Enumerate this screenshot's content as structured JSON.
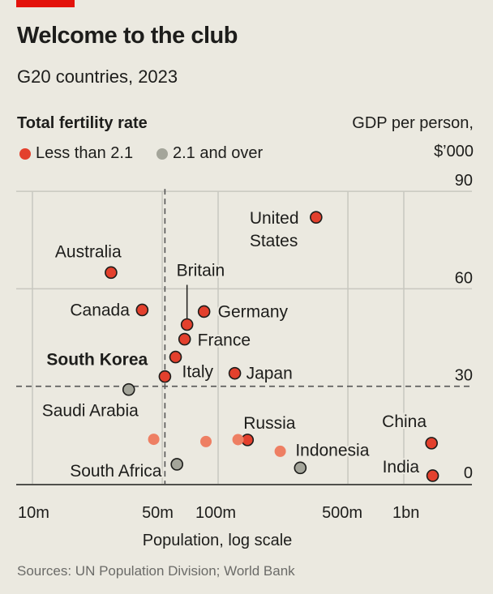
{
  "header": {
    "title": "Welcome to the club",
    "subtitle": "G20 countries, 2023"
  },
  "legend": {
    "title": "Total fertility rate",
    "items": [
      {
        "label": "Less than 2.1",
        "color": "#e3402d"
      },
      {
        "label": "2.1 and over",
        "color": "#a4a59a"
      }
    ]
  },
  "footer": {
    "sources": "Sources: UN Population Division; World Bank"
  },
  "chart_data": {
    "type": "scatter",
    "title": "Welcome to the club",
    "subtitle": "G20 countries, 2023",
    "xlabel": "Population, log scale",
    "ylabel": "GDP per person, $'000",
    "ylabel_lines": [
      "GDP per person,",
      "$’000"
    ],
    "xscale": "log",
    "xlim_millions": [
      10,
      2280
    ],
    "ylim": [
      0,
      90
    ],
    "xticks": [
      {
        "value": 10,
        "label": "10m"
      },
      {
        "value": 50,
        "label": "50m"
      },
      {
        "value": 100,
        "label": "100m"
      },
      {
        "value": 500,
        "label": "500m"
      },
      {
        "value": 1000,
        "label": "1bn"
      }
    ],
    "yticks": [
      {
        "value": 0,
        "label": "0"
      },
      {
        "value": 30,
        "label": "30"
      },
      {
        "value": 60,
        "label": "60"
      },
      {
        "value": 90,
        "label": "90"
      }
    ],
    "reference_lines": {
      "x_millions": 51.7,
      "y": 30
    },
    "colors": {
      "below": "#e3402d",
      "above": "#a4a59a",
      "unlabelled": "#ee7f63"
    },
    "points": [
      {
        "name": "United States",
        "label_lines": [
          "United",
          "States"
        ],
        "pop_m": 337,
        "gdp": 82,
        "fertility": "below"
      },
      {
        "name": "Australia",
        "pop_m": 26.5,
        "gdp": 65,
        "fertility": "below"
      },
      {
        "name": "Canada",
        "pop_m": 39,
        "gdp": 53.5,
        "fertility": "below"
      },
      {
        "name": "Britain",
        "pop_m": 68,
        "gdp": 49,
        "fertility": "below"
      },
      {
        "name": "Germany",
        "pop_m": 84,
        "gdp": 53,
        "fertility": "below"
      },
      {
        "name": "France",
        "pop_m": 66,
        "gdp": 44.5,
        "fertility": "below"
      },
      {
        "name": "Italy",
        "pop_m": 59,
        "gdp": 39,
        "fertility": "below"
      },
      {
        "name": "South Korea",
        "pop_m": 51.7,
        "gdp": 33,
        "fertility": "below",
        "highlight": true
      },
      {
        "name": "Japan",
        "pop_m": 123,
        "gdp": 34,
        "fertility": "below"
      },
      {
        "name": "Saudi Arabia",
        "pop_m": 33,
        "gdp": 29,
        "fertility": "above"
      },
      {
        "name": "Russia",
        "pop_m": 144,
        "gdp": 13.5,
        "fertility": "below"
      },
      {
        "name": "Indonesia",
        "pop_m": 277,
        "gdp": 4.9,
        "fertility": "above"
      },
      {
        "name": "South Africa",
        "pop_m": 60,
        "gdp": 6,
        "fertility": "above"
      },
      {
        "name": "China",
        "pop_m": 1410,
        "gdp": 12.5,
        "fertility": "below"
      },
      {
        "name": "India",
        "pop_m": 1430,
        "gdp": 2.5,
        "fertility": "below"
      },
      {
        "name": "",
        "pop_m": 45,
        "gdp": 13.7,
        "fertility": "unlabelled"
      },
      {
        "name": "",
        "pop_m": 86,
        "gdp": 13,
        "fertility": "unlabelled"
      },
      {
        "name": "",
        "pop_m": 128,
        "gdp": 13.6,
        "fertility": "unlabelled"
      },
      {
        "name": "",
        "pop_m": 216,
        "gdp": 10,
        "fertility": "unlabelled"
      }
    ]
  }
}
